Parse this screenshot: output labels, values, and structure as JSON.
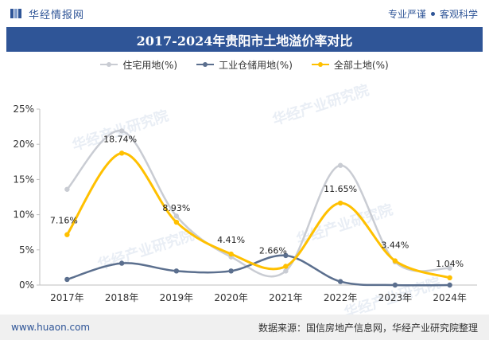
{
  "header": {
    "brand": "华经情报网",
    "slogan_left": "专业严谨",
    "slogan_right": "客观科学",
    "title": "2017-2024年贵阳市土地溢价率对比"
  },
  "footer": {
    "site": "www.huaon.com",
    "source": "数据来源：国信房地产信息网，华经产业研究院整理"
  },
  "watermark": "华经产业研究院",
  "chart_data": {
    "type": "line",
    "title": "2017-2024年贵阳市土地溢价率对比",
    "categories": [
      "2017年",
      "2018年",
      "2019年",
      "2020年",
      "2021年",
      "2022年",
      "2023年",
      "2024年"
    ],
    "ylim": [
      0,
      25
    ],
    "yticks": [
      "0%",
      "5%",
      "10%",
      "15%",
      "20%",
      "25%"
    ],
    "grid": false,
    "legend_position": "top-center",
    "series": [
      {
        "name": "住宅用地(%)",
        "color": "#c9ccd3",
        "values": [
          13.6,
          21.9,
          9.8,
          4.0,
          2.0,
          17.0,
          3.3,
          2.4
        ],
        "labels": []
      },
      {
        "name": "工业仓储用地(%)",
        "color": "#5b6f8e",
        "values": [
          0.8,
          3.1,
          2.0,
          2.0,
          4.2,
          0.5,
          0.0,
          0.0
        ],
        "labels": []
      },
      {
        "name": "全部土地(%)",
        "color": "#ffc000",
        "values": [
          7.16,
          18.74,
          8.93,
          4.41,
          2.66,
          11.65,
          3.44,
          1.04
        ],
        "labels": [
          "7.16%",
          "18.74%",
          "8.93%",
          "4.41%",
          "2.66%",
          "11.65%",
          "3.44%",
          "1.04%"
        ]
      }
    ]
  }
}
